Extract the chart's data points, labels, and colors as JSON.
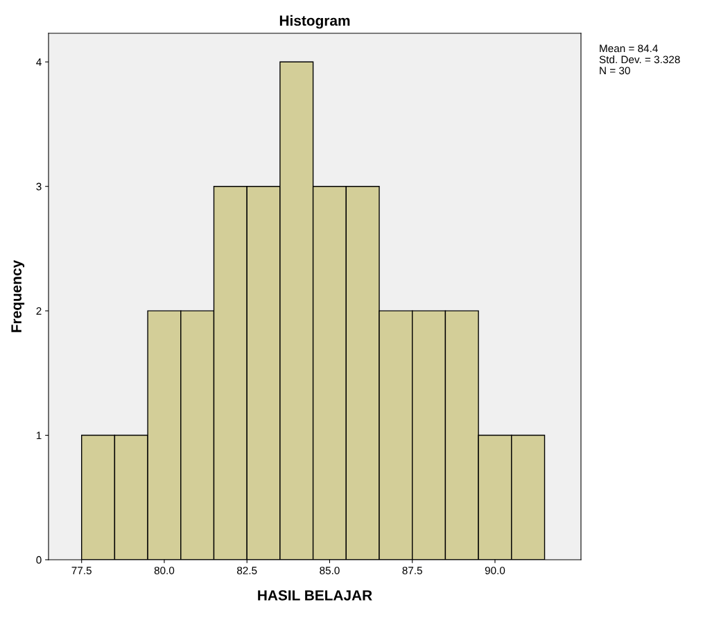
{
  "chart_data": {
    "type": "histogram",
    "title": "Histogram",
    "xlabel": "HASIL BELAJAR",
    "ylabel": "Frequency",
    "bins": [
      77.5,
      78.5,
      79.5,
      80.5,
      81.5,
      82.5,
      83.5,
      84.5,
      85.5,
      86.5,
      87.5,
      88.5,
      89.5,
      90.5,
      91.5
    ],
    "values": [
      1,
      1,
      2,
      2,
      3,
      3,
      4,
      3,
      3,
      2,
      2,
      2,
      1,
      1
    ],
    "color": "#d3ce98",
    "xlim": [
      76.5,
      92.6
    ],
    "xticks": [
      {
        "value": 77.5,
        "label": "77.5"
      },
      {
        "value": 80,
        "label": "80.0"
      },
      {
        "value": 82.5,
        "label": "82.5"
      },
      {
        "value": 85,
        "label": "85.0"
      },
      {
        "value": 87.5,
        "label": "87.5"
      },
      {
        "value": 90,
        "label": "90.0"
      }
    ],
    "ylim": [
      0,
      4.23
    ],
    "yticks": [
      0,
      1,
      2,
      3,
      4
    ],
    "grid": false,
    "annotations": [
      "Mean = 84.4",
      "Std. Dev. = 3.328",
      "N = 30"
    ]
  }
}
